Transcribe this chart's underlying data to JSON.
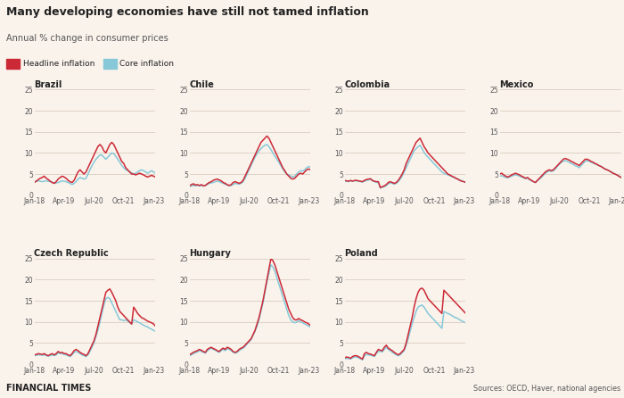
{
  "title": "Many developing economies have still not tamed inflation",
  "subtitle": "Annual % change in consumer prices",
  "background_color": "#faf3ec",
  "headline_color": "#cc2936",
  "core_color": "#86c8d8",
  "grid_color": "#c8b8a8",
  "text_color": "#222222",
  "source_text": "Sources: OECD, Haver, national agencies",
  "footer_text": "FINANCIAL TIMES",
  "x_labels": [
    "Jan-18",
    "Apr-19",
    "Jul-20",
    "Oct-21",
    "Jan-23"
  ],
  "xtick_pos": [
    0,
    15,
    30,
    45,
    60
  ],
  "n_points": 62,
  "ylim": [
    0,
    25
  ],
  "yticks": [
    0,
    5,
    10,
    15,
    20,
    25
  ],
  "Brazil": {
    "headline": [
      3.0,
      3.3,
      3.7,
      4.0,
      4.2,
      4.5,
      4.0,
      3.7,
      3.3,
      3.0,
      2.8,
      3.2,
      3.8,
      4.2,
      4.5,
      4.3,
      4.0,
      3.5,
      3.2,
      3.0,
      3.5,
      4.5,
      5.5,
      6.0,
      5.5,
      5.0,
      5.5,
      6.5,
      7.5,
      8.5,
      9.5,
      10.5,
      11.5,
      12.0,
      11.5,
      10.5,
      10.0,
      11.0,
      12.0,
      12.5,
      12.0,
      11.0,
      10.0,
      9.0,
      8.0,
      7.5,
      6.5,
      6.0,
      5.5,
      5.0,
      5.0,
      4.8,
      5.0,
      5.2,
      5.0,
      4.8,
      4.5,
      4.3,
      4.5,
      4.7,
      4.5,
      4.3
    ],
    "core": [
      3.2,
      3.3,
      3.4,
      3.3,
      3.2,
      3.3,
      3.4,
      3.3,
      3.2,
      3.0,
      2.8,
      2.9,
      3.0,
      3.2,
      3.4,
      3.3,
      3.2,
      3.0,
      2.8,
      2.5,
      2.8,
      3.2,
      3.8,
      4.2,
      4.0,
      3.8,
      4.0,
      5.0,
      6.0,
      7.0,
      7.8,
      8.5,
      9.0,
      9.5,
      9.5,
      9.0,
      8.5,
      9.0,
      9.5,
      10.0,
      9.8,
      9.2,
      8.5,
      7.8,
      7.0,
      6.5,
      6.0,
      5.8,
      5.5,
      5.3,
      5.0,
      5.2,
      5.5,
      5.8,
      6.0,
      5.8,
      5.5,
      5.2,
      5.5,
      5.8,
      5.5,
      5.2
    ]
  },
  "Chile": {
    "headline": [
      2.2,
      2.5,
      2.7,
      2.4,
      2.5,
      2.3,
      2.5,
      2.2,
      2.3,
      2.7,
      3.0,
      3.2,
      3.5,
      3.7,
      3.8,
      3.6,
      3.4,
      3.0,
      2.8,
      2.5,
      2.3,
      2.5,
      3.0,
      3.2,
      3.0,
      2.8,
      3.0,
      3.5,
      4.5,
      5.5,
      6.5,
      7.5,
      8.5,
      9.5,
      10.5,
      11.5,
      12.5,
      13.0,
      13.5,
      14.0,
      13.5,
      12.5,
      11.5,
      10.5,
      9.5,
      8.5,
      7.5,
      6.5,
      5.8,
      5.0,
      4.5,
      4.0,
      3.8,
      4.0,
      4.5,
      5.0,
      5.2,
      5.0,
      5.5,
      6.0,
      6.2,
      6.0
    ],
    "core": [
      2.0,
      2.2,
      2.3,
      2.2,
      2.3,
      2.2,
      2.3,
      2.2,
      2.3,
      2.5,
      2.8,
      2.9,
      3.0,
      3.2,
      3.3,
      3.2,
      3.0,
      2.8,
      2.6,
      2.4,
      2.2,
      2.3,
      2.5,
      2.8,
      2.7,
      2.6,
      2.8,
      3.2,
      4.0,
      5.0,
      6.0,
      7.0,
      8.0,
      9.0,
      9.8,
      10.5,
      11.0,
      11.5,
      11.8,
      12.0,
      11.5,
      10.8,
      10.0,
      9.2,
      8.5,
      7.8,
      7.0,
      6.2,
      5.5,
      5.0,
      4.8,
      4.5,
      4.3,
      4.5,
      5.0,
      5.5,
      5.8,
      5.7,
      6.0,
      6.5,
      6.8,
      6.5
    ]
  },
  "Colombia": {
    "headline": [
      3.5,
      3.4,
      3.3,
      3.5,
      3.3,
      3.5,
      3.5,
      3.4,
      3.3,
      3.2,
      3.5,
      3.7,
      3.8,
      3.9,
      3.5,
      3.3,
      3.2,
      3.2,
      1.8,
      2.0,
      2.2,
      2.5,
      3.0,
      3.2,
      3.0,
      2.8,
      3.0,
      3.5,
      4.2,
      5.0,
      6.0,
      7.5,
      8.5,
      9.5,
      10.5,
      11.5,
      12.5,
      13.0,
      13.5,
      12.5,
      11.5,
      10.8,
      10.0,
      9.5,
      9.0,
      8.5,
      8.0,
      7.5,
      7.0,
      6.5,
      6.0,
      5.5,
      5.0,
      4.8,
      4.5,
      4.3,
      4.0,
      3.8,
      3.5,
      3.3,
      3.2,
      3.0
    ],
    "core": [
      3.3,
      3.3,
      3.2,
      3.4,
      3.3,
      3.4,
      3.4,
      3.3,
      3.2,
      3.1,
      3.3,
      3.5,
      3.6,
      3.8,
      3.4,
      3.2,
      3.0,
      3.0,
      1.7,
      1.9,
      2.0,
      2.3,
      2.7,
      2.9,
      2.8,
      2.6,
      2.8,
      3.2,
      3.8,
      4.5,
      5.5,
      6.5,
      7.5,
      8.5,
      9.5,
      10.5,
      11.0,
      11.5,
      11.8,
      11.0,
      10.2,
      9.5,
      9.0,
      8.5,
      8.0,
      7.5,
      7.0,
      6.5,
      6.0,
      5.5,
      5.2,
      5.0,
      4.8,
      4.6,
      4.4,
      4.2,
      4.0,
      3.8,
      3.6,
      3.4,
      3.2,
      3.0
    ]
  },
  "Mexico": {
    "headline": [
      5.0,
      5.2,
      4.8,
      4.5,
      4.3,
      4.5,
      4.8,
      5.0,
      5.2,
      5.0,
      4.8,
      4.5,
      4.3,
      4.0,
      4.2,
      3.8,
      3.5,
      3.2,
      3.0,
      3.5,
      4.0,
      4.5,
      5.0,
      5.5,
      5.8,
      6.0,
      5.8,
      6.0,
      6.5,
      7.0,
      7.5,
      8.0,
      8.5,
      8.7,
      8.5,
      8.3,
      8.0,
      7.8,
      7.5,
      7.3,
      7.0,
      7.5,
      8.0,
      8.5,
      8.5,
      8.3,
      8.0,
      7.8,
      7.5,
      7.3,
      7.0,
      6.8,
      6.5,
      6.2,
      6.0,
      5.8,
      5.5,
      5.2,
      5.0,
      4.8,
      4.5,
      4.2
    ],
    "core": [
      4.5,
      4.6,
      4.4,
      4.2,
      4.1,
      4.3,
      4.5,
      4.7,
      4.8,
      4.7,
      4.5,
      4.3,
      4.1,
      3.9,
      4.0,
      3.7,
      3.4,
      3.2,
      3.0,
      3.5,
      3.8,
      4.2,
      4.7,
      5.2,
      5.5,
      5.8,
      5.6,
      5.8,
      6.2,
      6.8,
      7.3,
      7.8,
      8.0,
      8.2,
      8.0,
      7.8,
      7.5,
      7.3,
      7.0,
      6.8,
      6.5,
      7.0,
      7.5,
      8.0,
      8.2,
      8.0,
      7.8,
      7.6,
      7.4,
      7.2,
      7.0,
      6.8,
      6.5,
      6.2,
      6.0,
      5.8,
      5.5,
      5.3,
      5.0,
      4.8,
      4.5,
      4.3
    ]
  },
  "Czech Republic": {
    "headline": [
      2.2,
      2.3,
      2.5,
      2.4,
      2.3,
      2.5,
      2.2,
      2.0,
      2.3,
      2.5,
      2.2,
      2.5,
      3.0,
      2.7,
      2.8,
      2.5,
      2.5,
      2.2,
      2.0,
      2.5,
      3.2,
      3.5,
      3.2,
      2.8,
      2.5,
      2.3,
      2.0,
      2.5,
      3.5,
      4.5,
      5.5,
      7.0,
      9.0,
      11.0,
      13.0,
      15.0,
      17.0,
      17.5,
      17.8,
      17.0,
      16.0,
      15.0,
      13.5,
      12.5,
      12.0,
      11.5,
      11.0,
      10.5,
      10.0,
      9.5,
      13.5,
      12.8,
      12.0,
      11.5,
      11.0,
      10.8,
      10.5,
      10.2,
      10.0,
      9.8,
      9.5,
      9.0
    ],
    "core": [
      2.0,
      2.1,
      2.2,
      2.2,
      2.1,
      2.2,
      2.0,
      1.9,
      2.0,
      2.2,
      2.0,
      2.2,
      2.7,
      2.5,
      2.5,
      2.3,
      2.2,
      2.0,
      1.8,
      2.2,
      2.8,
      3.0,
      2.8,
      2.5,
      2.2,
      2.0,
      1.8,
      2.2,
      3.0,
      4.0,
      5.0,
      6.5,
      8.0,
      10.0,
      12.0,
      14.0,
      15.5,
      15.8,
      15.5,
      14.5,
      13.5,
      12.5,
      11.5,
      10.5,
      10.5,
      10.3,
      10.5,
      10.2,
      9.8,
      9.5,
      10.5,
      10.3,
      10.0,
      9.8,
      9.5,
      9.2,
      9.0,
      8.8,
      8.5,
      8.3,
      8.0,
      7.8
    ]
  },
  "Hungary": {
    "headline": [
      2.2,
      2.5,
      2.8,
      3.0,
      3.2,
      3.5,
      3.3,
      3.0,
      2.8,
      3.5,
      3.8,
      4.0,
      3.7,
      3.5,
      3.2,
      3.0,
      3.5,
      3.8,
      3.5,
      4.0,
      3.8,
      3.5,
      3.0,
      2.8,
      3.0,
      3.5,
      3.8,
      4.0,
      4.5,
      5.0,
      5.5,
      6.0,
      7.0,
      8.0,
      9.5,
      11.0,
      13.0,
      15.0,
      17.5,
      20.0,
      22.5,
      25.0,
      24.5,
      23.5,
      22.0,
      20.5,
      19.0,
      17.5,
      16.0,
      14.5,
      13.0,
      12.0,
      11.0,
      10.5,
      10.5,
      10.8,
      10.5,
      10.3,
      10.0,
      9.8,
      9.5,
      9.2
    ],
    "core": [
      2.0,
      2.2,
      2.5,
      2.7,
      2.9,
      3.2,
      3.0,
      2.8,
      2.6,
      3.2,
      3.5,
      3.8,
      3.5,
      3.3,
      3.0,
      2.8,
      3.2,
      3.5,
      3.2,
      3.7,
      3.5,
      3.2,
      2.8,
      2.6,
      2.8,
      3.2,
      3.5,
      3.8,
      4.2,
      4.8,
      5.3,
      5.8,
      6.8,
      7.8,
      9.0,
      10.5,
      12.5,
      14.5,
      17.0,
      19.5,
      21.5,
      23.5,
      23.0,
      22.0,
      20.5,
      19.0,
      17.5,
      16.0,
      14.5,
      13.0,
      11.5,
      10.5,
      10.0,
      9.8,
      10.0,
      10.3,
      10.0,
      9.8,
      9.5,
      9.3,
      9.0,
      8.8
    ]
  },
  "Poland": {
    "headline": [
      1.5,
      1.7,
      1.6,
      1.4,
      1.8,
      2.0,
      2.0,
      1.8,
      1.5,
      1.2,
      2.5,
      2.8,
      2.5,
      2.4,
      2.2,
      2.0,
      2.8,
      3.5,
      3.3,
      3.2,
      4.0,
      4.5,
      3.8,
      3.5,
      3.2,
      2.8,
      2.5,
      2.2,
      2.5,
      3.0,
      3.5,
      5.0,
      7.0,
      9.0,
      11.0,
      13.5,
      15.5,
      17.0,
      17.8,
      18.0,
      17.5,
      16.5,
      15.5,
      15.0,
      14.5,
      14.0,
      13.5,
      13.0,
      12.5,
      12.0,
      17.5,
      17.0,
      16.5,
      16.0,
      15.5,
      15.0,
      14.5,
      14.0,
      13.5,
      13.0,
      12.5,
      12.0
    ],
    "core": [
      1.2,
      1.4,
      1.3,
      1.2,
      1.5,
      1.7,
      1.7,
      1.5,
      1.3,
      1.0,
      2.0,
      2.3,
      2.2,
      2.1,
      2.0,
      1.8,
      2.5,
      3.0,
      3.0,
      2.9,
      3.5,
      4.0,
      3.5,
      3.2,
      2.8,
      2.5,
      2.2,
      2.0,
      2.2,
      2.7,
      3.2,
      4.5,
      6.0,
      7.8,
      9.5,
      11.0,
      12.5,
      13.5,
      13.8,
      14.0,
      13.5,
      12.8,
      12.0,
      11.5,
      11.0,
      10.5,
      10.0,
      9.5,
      9.0,
      8.5,
      12.5,
      12.2,
      12.0,
      11.8,
      11.5,
      11.2,
      11.0,
      10.8,
      10.5,
      10.2,
      10.0,
      9.8
    ]
  }
}
